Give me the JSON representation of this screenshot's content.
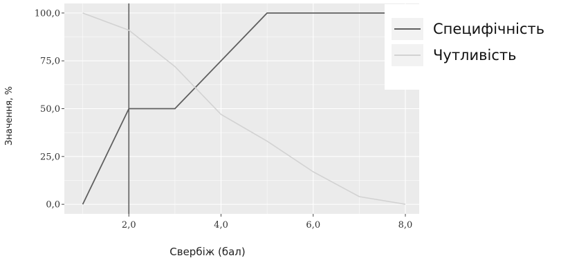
{
  "chart_data": {
    "type": "line",
    "xlabel": "Свербіж (бал)",
    "ylabel": "Значення, %",
    "xlim": [
      0.6,
      8.3
    ],
    "ylim": [
      -5,
      105
    ],
    "grid": true,
    "legend_position": "top-right",
    "x_ticks": [
      {
        "value": 2,
        "label": "2,0"
      },
      {
        "value": 4,
        "label": "4,0"
      },
      {
        "value": 6,
        "label": "6,0"
      },
      {
        "value": 8,
        "label": "8,0"
      }
    ],
    "y_ticks": [
      {
        "value": 0,
        "label": "0,0"
      },
      {
        "value": 25,
        "label": "25,0"
      },
      {
        "value": 50,
        "label": "50,0"
      },
      {
        "value": 75,
        "label": "75,0"
      },
      {
        "value": 100,
        "label": "100,0"
      }
    ],
    "vline_x": 2,
    "series": [
      {
        "name": "Специфічність",
        "color": "#5f5f5f",
        "x": [
          1,
          2,
          3,
          5,
          8
        ],
        "y": [
          0,
          50,
          50,
          100,
          100
        ]
      },
      {
        "name": "Чутливість",
        "color": "#d2d2d2",
        "x": [
          1,
          2,
          3,
          4,
          5,
          6,
          7,
          8
        ],
        "y": [
          100,
          91,
          72,
          47,
          33,
          17,
          4,
          0
        ]
      }
    ]
  },
  "colors": {
    "panel_background": "#ebebeb",
    "grid_major": "#ffffff",
    "vline": "#5f5f5f"
  }
}
